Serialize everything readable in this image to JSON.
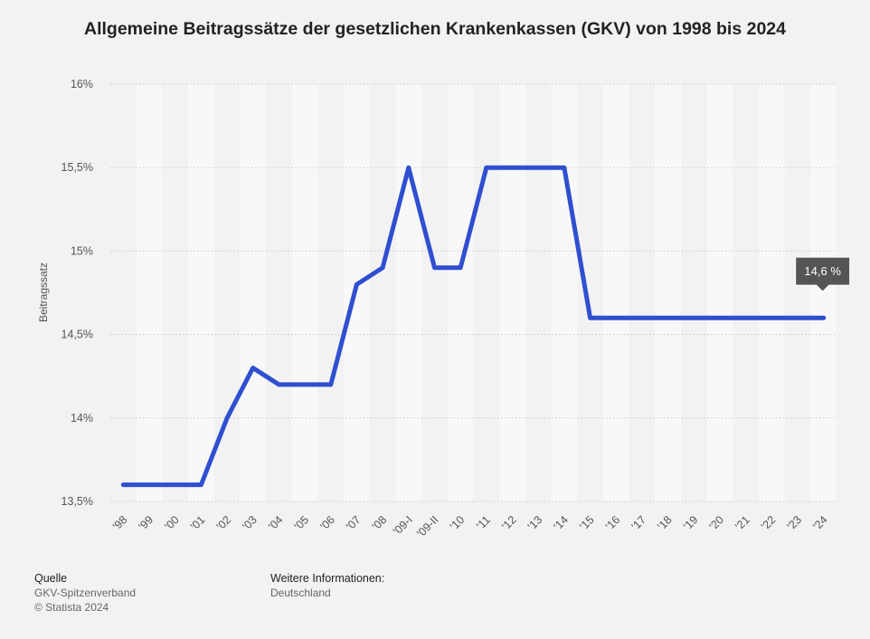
{
  "header": {
    "title": "Allgemeine Beitragssätze der gesetzlichen Krankenkassen (GKV) von 1998 bis 2024"
  },
  "chart_data": {
    "type": "line",
    "title": "Allgemeine Beitragssätze der gesetzlichen Krankenkassen (GKV) von 1998 bis 2024",
    "xlabel": "",
    "ylabel": "Beitragssatz",
    "categories": [
      "'98",
      "'99",
      "'00",
      "'01",
      "'02",
      "'03",
      "'04",
      "'05",
      "'06",
      "'07",
      "'08",
      "'09-I",
      "'09-II",
      "'10",
      "'11",
      "'12",
      "'13",
      "'14",
      "'15",
      "'16",
      "'17",
      "'18",
      "'19",
      "'20",
      "'21",
      "'22",
      "'23",
      "'24"
    ],
    "series": [
      {
        "values": [
          13.6,
          13.6,
          13.6,
          13.6,
          14.0,
          14.3,
          14.2,
          14.2,
          14.2,
          14.8,
          14.9,
          15.5,
          14.9,
          14.9,
          15.5,
          15.5,
          15.5,
          15.5,
          14.6,
          14.6,
          14.6,
          14.6,
          14.6,
          14.6,
          14.6,
          14.6,
          14.6,
          14.6
        ],
        "color": "#2f4fd0"
      }
    ],
    "ylim": [
      13.5,
      16.0
    ],
    "yticks": [
      13.5,
      14.0,
      14.5,
      15.0,
      15.5,
      16.0
    ],
    "ytick_labels": [
      "13,5%",
      "14%",
      "14,5%",
      "15%",
      "15,5%",
      "16%"
    ],
    "grid": true,
    "legend": "none",
    "annotation": {
      "category": "'24",
      "text": "14,6 %"
    }
  },
  "footer": {
    "source_heading": "Quelle",
    "source_name": "GKV-Spitzenverband",
    "copyright": "© Statista 2024",
    "info_heading": "Weitere Informationen:",
    "info_text": "Deutschland"
  },
  "colors": {
    "background": "#f2f2f2",
    "plot_band": "#f8f8f8",
    "line": "#2f4fd0",
    "tooltip": "#555555"
  }
}
